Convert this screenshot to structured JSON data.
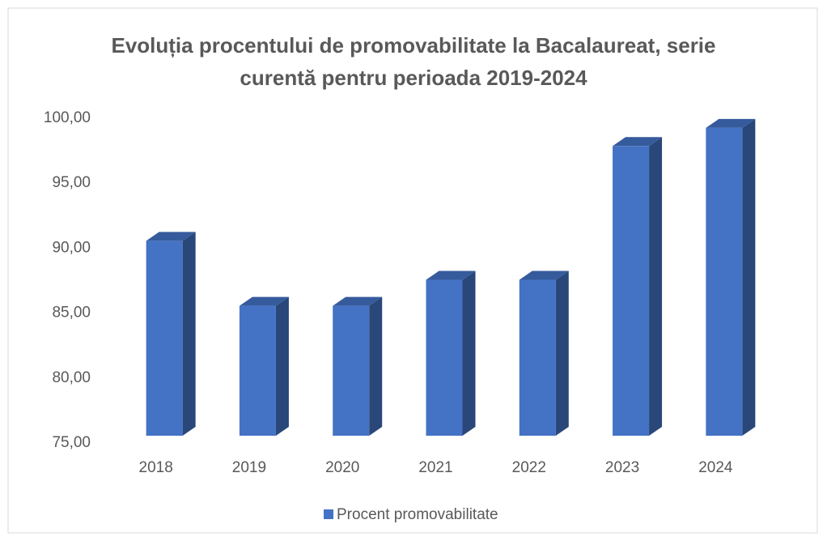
{
  "chart_data": {
    "type": "bar3d",
    "title_lines": [
      "Evoluția procentului de promovabilitate la Bacalaureat, serie",
      "curentă pentru perioada 2019-2024"
    ],
    "categories": [
      "2018",
      "2019",
      "2020",
      "2021",
      "2022",
      "2023",
      "2024"
    ],
    "series": [
      {
        "name": "Procent  promovabilitate",
        "color": "#4472c4",
        "values": [
          90,
          85,
          85,
          87,
          87,
          97.3,
          98.7
        ]
      }
    ],
    "ylim": [
      75,
      100
    ],
    "yticks": [
      {
        "value": 75,
        "label": "75,00"
      },
      {
        "value": 80,
        "label": "80,00"
      },
      {
        "value": 85,
        "label": "85,00"
      },
      {
        "value": 90,
        "label": "90,00"
      },
      {
        "value": 95,
        "label": "95,00"
      },
      {
        "value": 100,
        "label": "100,00"
      }
    ],
    "grid": false,
    "legend": "bottom"
  }
}
